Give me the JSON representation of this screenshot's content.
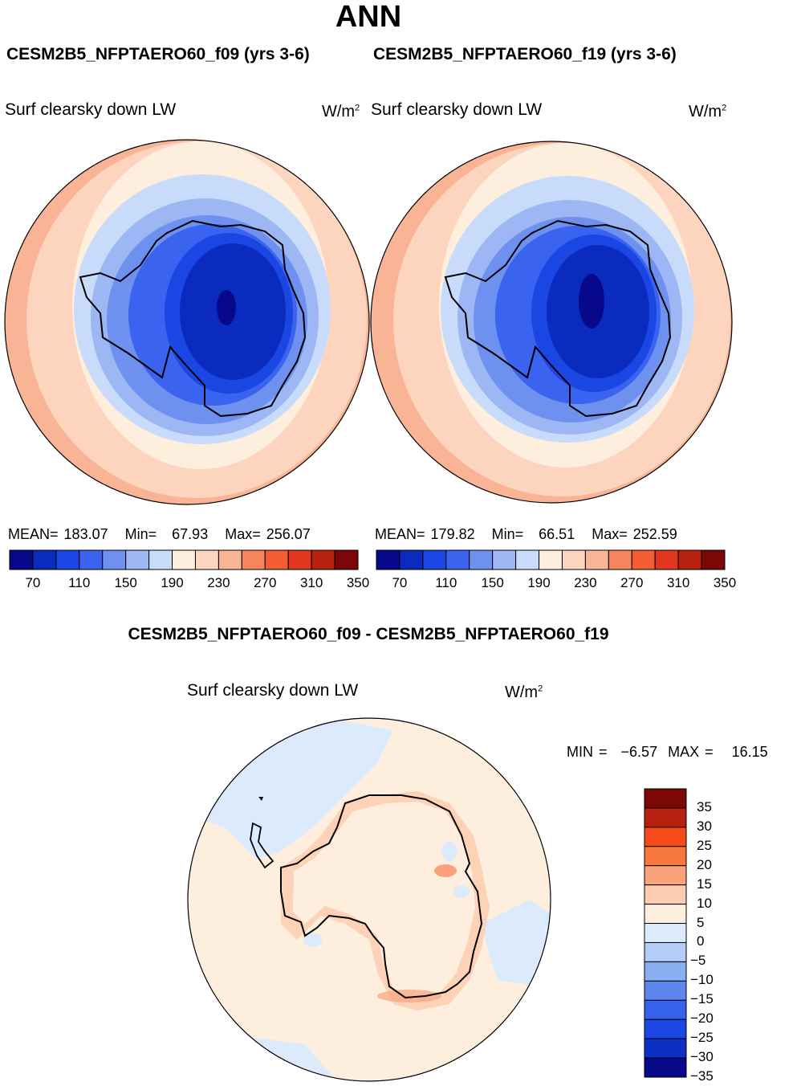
{
  "season": "ANN",
  "panels": [
    {
      "case_title": "CESM2B5_NFPTAERO60_f09 (yrs 3-6)",
      "variable": "Surf clearsky down LW",
      "units": "W/m",
      "units_exponent": "2",
      "stats": {
        "mean_label": "MEAN=",
        "mean": "183.07",
        "min_label": "Min=",
        "min": "67.93",
        "max_label": "Max=",
        "max": "256.07"
      }
    },
    {
      "case_title": "CESM2B5_NFPTAERO60_f19 (yrs 3-6)",
      "variable": "Surf clearsky down LW",
      "units": "W/m",
      "units_exponent": "2",
      "stats": {
        "mean_label": "MEAN=",
        "mean": "179.82",
        "min_label": "Min=",
        "min": "66.51",
        "max_label": "Max=",
        "max": "252.59"
      }
    }
  ],
  "difference": {
    "title": "CESM2B5_NFPTAERO60_f09 - CESM2B5_NFPTAERO60_f19",
    "variable": "Surf clearsky down LW",
    "units": "W/m",
    "units_exponent": "2",
    "min_label": "MIN =",
    "min": "−6.57",
    "max_label": "MAX =",
    "max": "16.15"
  },
  "colorbar_abs": {
    "colors": [
      "#08088a",
      "#0a2bbe",
      "#1a46e4",
      "#3a63f0",
      "#6e91f0",
      "#9cb7f4",
      "#c8dbfa",
      "#fdeedd",
      "#fdd5be",
      "#f9b395",
      "#f7855b",
      "#f45d32",
      "#e0371e",
      "#b8200e",
      "#7b0707"
    ],
    "tick_labels": [
      "70",
      "110",
      "150",
      "190",
      "230",
      "270",
      "310",
      "350"
    ]
  },
  "colorbar_diff": {
    "colors": [
      "#7b0707",
      "#b8200e",
      "#f54a1a",
      "#f7773f",
      "#f9a27b",
      "#fdccb0",
      "#fdeedd",
      "#dcebfb",
      "#b4cdf6",
      "#8aaef2",
      "#5e87ee",
      "#3762ee",
      "#1a46e4",
      "#0d2fc4",
      "#08088a"
    ],
    "tick_labels": [
      "35",
      "30",
      "25",
      "20",
      "15",
      "10",
      "5",
      "0",
      "−5",
      "−10",
      "−15",
      "−20",
      "−25",
      "−30",
      "−35"
    ]
  }
}
